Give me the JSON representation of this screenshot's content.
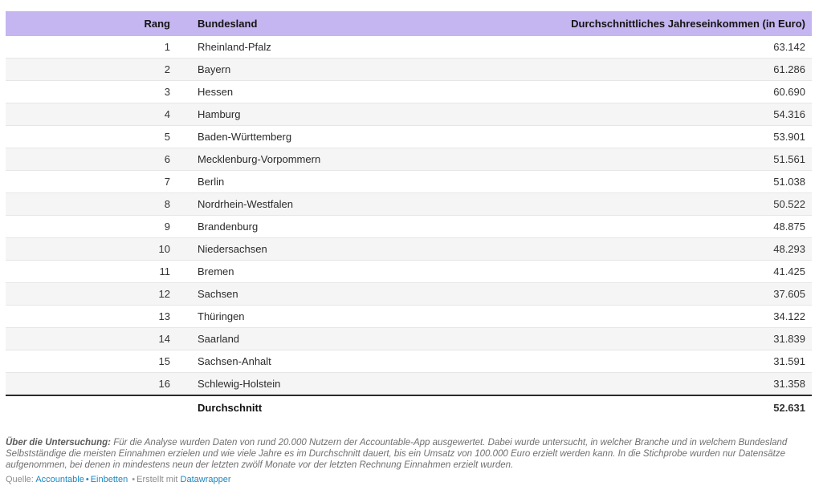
{
  "chart_data": {
    "type": "table",
    "columns": [
      "Rang",
      "Bundesland",
      "Durchschnittliches Jahreseinkommen (in Euro)"
    ],
    "rows": [
      [
        "1",
        "Rheinland-Pfalz",
        "63.142"
      ],
      [
        "2",
        "Bayern",
        "61.286"
      ],
      [
        "3",
        "Hessen",
        "60.690"
      ],
      [
        "4",
        "Hamburg",
        "54.316"
      ],
      [
        "5",
        "Baden-Württemberg",
        "53.901"
      ],
      [
        "6",
        "Mecklenburg-Vorpommern",
        "51.561"
      ],
      [
        "7",
        "Berlin",
        "51.038"
      ],
      [
        "8",
        "Nordrhein-Westfalen",
        "50.522"
      ],
      [
        "9",
        "Brandenburg",
        "48.875"
      ],
      [
        "10",
        "Niedersachsen",
        "48.293"
      ],
      [
        "11",
        "Bremen",
        "41.425"
      ],
      [
        "12",
        "Sachsen",
        "37.605"
      ],
      [
        "13",
        "Thüringen",
        "34.122"
      ],
      [
        "14",
        "Saarland",
        "31.839"
      ],
      [
        "15",
        "Sachsen-Anhalt",
        "31.591"
      ],
      [
        "16",
        "Schlewig-Holstein",
        "31.358"
      ]
    ],
    "summary_row": [
      "",
      "Durchschnitt",
      "52.631"
    ],
    "layout_hints": {
      "striped": true,
      "header_style": "lavender",
      "value_alignment": "right"
    }
  },
  "footer": {
    "about_label": "Über die Untersuchung:",
    "about_text": "Für die Analyse wurden Daten von rund 20.000 Nutzern der Accountable-App ausgewertet. Dabei wurde untersucht, in welcher Branche und in welchem Bundesland Selbstständige die meisten Einnahmen erzielen und wie viele Jahre es im Durchschnitt dauert, bis ein Umsatz von 100.000 Euro erzielt werden kann. In die Stichprobe wurden nur Datensätze aufgenommen, bei denen in mindestens neun der letzten zwölf Monate vor der letzten Rechnung Einnahmen erzielt wurden.",
    "source_label": "Quelle:",
    "source_link": "Accountable",
    "separator": "•",
    "embed_link": "Einbetten",
    "credit_text": "Erstellt mit",
    "credit_link": "Datawrapper"
  },
  "colors": {
    "header_bg": "#c5b5f1",
    "stripe": "#f5f5f5",
    "row_border": "#e6e6e6",
    "rule": "#2b2b2b",
    "link": "#1d87c0"
  }
}
